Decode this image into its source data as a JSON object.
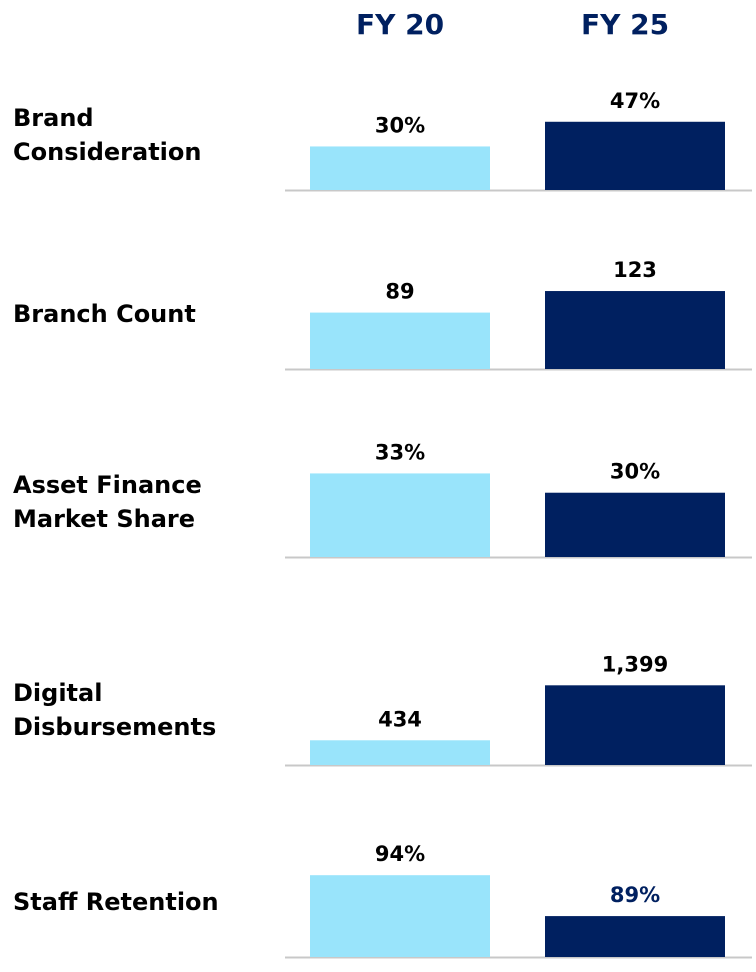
{
  "column_headers": [
    "FY 20",
    "FY 25"
  ],
  "colors": [
    "#99e4fb",
    "#002060"
  ],
  "chart_data": [
    {
      "type": "bar",
      "title": "Brand\nConsideration",
      "values": [
        30,
        47
      ],
      "value_labels": [
        "30%",
        "47%"
      ],
      "ylim": [
        0,
        62
      ]
    },
    {
      "type": "bar",
      "title": "Branch Count",
      "values": [
        89,
        123
      ],
      "ylim": [
        0,
        142
      ]
    },
    {
      "type": "bar",
      "title": "Asset Finance\nMarket Share",
      "values": [
        33,
        30
      ],
      "value_labels": [
        "33%",
        "30%"
      ],
      "ylim": [
        20,
        34
      ]
    },
    {
      "type": "bar",
      "title": "Digital\nDisbursements",
      "values": [
        434,
        1399
      ],
      "value_labels": [
        "434",
        "1,399"
      ],
      "ylim": [
        0,
        1580
      ]
    },
    {
      "type": "bar",
      "title": "Staff Retention",
      "values": [
        94,
        89
      ],
      "value_labels": [
        "94%",
        "89%"
      ],
      "ylim": [
        84,
        95
      ],
      "value_label_colors": [
        "#000000",
        "#002060"
      ]
    }
  ]
}
